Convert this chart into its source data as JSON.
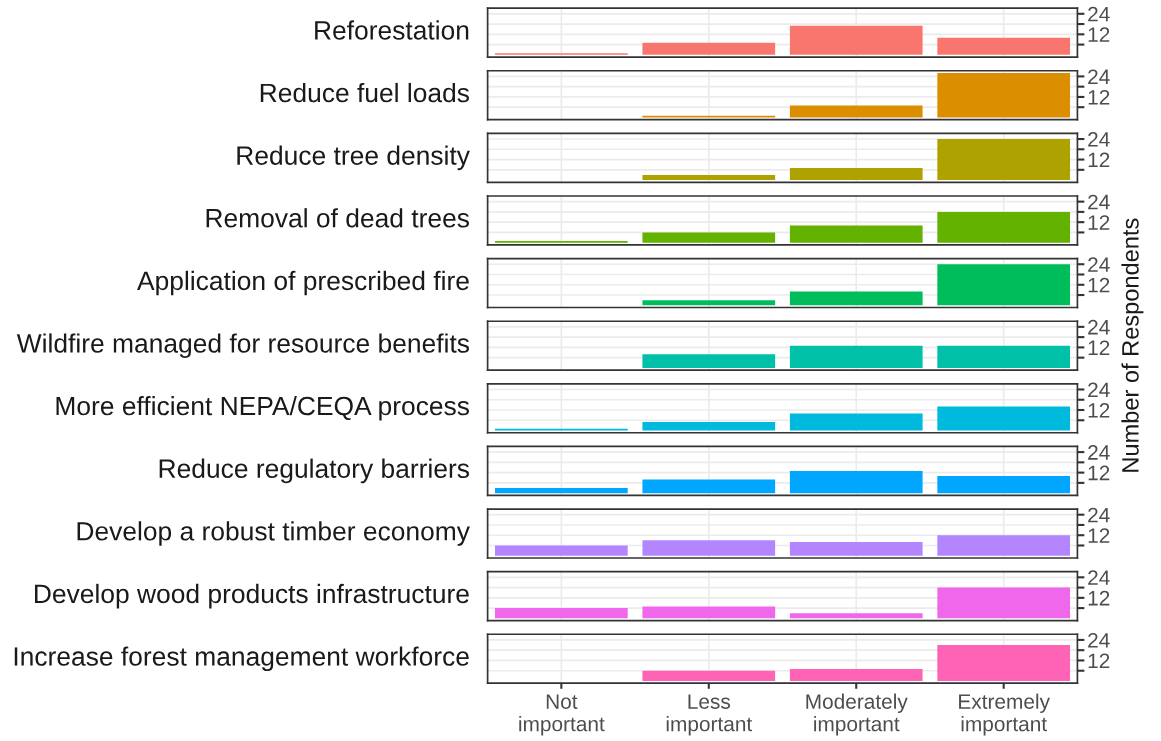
{
  "chart_data": [
    {
      "type": "bar",
      "title": "Reforestation",
      "categories": [
        null,
        null,
        null,
        null
      ],
      "values": [
        1,
        7,
        17,
        10
      ],
      "color": "#f8766d",
      "ylim": [
        -1.3,
        27.3
      ],
      "yticks": [
        12,
        24
      ],
      "grid": true,
      "tick_labels": "y"
    },
    {
      "type": "bar",
      "title": "Reduce fuel loads",
      "categories": [
        null,
        null,
        null,
        null
      ],
      "values": [
        0,
        1,
        7,
        26
      ],
      "color": "#db8e00",
      "ylim": [
        -1.3,
        27.3
      ],
      "yticks": [
        12,
        24
      ],
      "grid": true,
      "tick_labels": "y"
    },
    {
      "type": "bar",
      "title": "Reduce tree density",
      "categories": [
        null,
        null,
        null,
        null
      ],
      "values": [
        0,
        3,
        7,
        24
      ],
      "color": "#aea200",
      "ylim": [
        -1.3,
        27.3
      ],
      "yticks": [
        12,
        24
      ],
      "grid": true,
      "tick_labels": "y"
    },
    {
      "type": "bar",
      "title": "Removal of dead trees",
      "categories": [
        null,
        null,
        null,
        null
      ],
      "values": [
        1,
        6,
        10,
        18
      ],
      "color": "#64b200",
      "ylim": [
        -1.3,
        27.3
      ],
      "yticks": [
        12,
        24
      ],
      "grid": true,
      "tick_labels": "y"
    },
    {
      "type": "bar",
      "title": "Application of prescribed fire",
      "categories": [
        null,
        null,
        null,
        null
      ],
      "values": [
        0,
        3,
        8,
        24
      ],
      "color": "#00bd5c",
      "ylim": [
        -1.3,
        27.3
      ],
      "yticks": [
        12,
        24
      ],
      "grid": true,
      "tick_labels": "y"
    },
    {
      "type": "bar",
      "title": "Wildfire managed for resource benefits",
      "categories": [
        null,
        null,
        null,
        null
      ],
      "values": [
        0,
        8,
        13,
        13
      ],
      "color": "#00c1a7",
      "ylim": [
        -1.3,
        27.3
      ],
      "yticks": [
        12,
        24
      ],
      "grid": true,
      "tick_labels": "y",
      "ylabel": "Number of Respondents"
    },
    {
      "type": "bar",
      "title": "More efficient NEPA/CEQA process",
      "categories": [
        null,
        null,
        null,
        null
      ],
      "values": [
        1,
        5,
        10,
        14
      ],
      "color": "#00bade",
      "ylim": [
        -1.3,
        27.3
      ],
      "yticks": [
        12,
        24
      ],
      "grid": true,
      "tick_labels": "y"
    },
    {
      "type": "bar",
      "title": "Reduce regulatory barriers",
      "categories": [
        null,
        null,
        null,
        null
      ],
      "values": [
        3,
        8,
        13,
        10
      ],
      "color": "#00a6ff",
      "ylim": [
        -1.3,
        27.3
      ],
      "yticks": [
        12,
        24
      ],
      "grid": true,
      "tick_labels": "y"
    },
    {
      "type": "bar",
      "title": "Develop a robust timber economy",
      "categories": [
        null,
        null,
        null,
        null
      ],
      "values": [
        6,
        9,
        8,
        12
      ],
      "color": "#b385ff",
      "ylim": [
        -1.3,
        27.3
      ],
      "yticks": [
        12,
        24
      ],
      "grid": true,
      "tick_labels": "y"
    },
    {
      "type": "bar",
      "title": "Develop wood products infrastructure",
      "categories": [
        null,
        null,
        null,
        null
      ],
      "values": [
        6,
        7,
        3,
        18
      ],
      "color": "#ef67eb",
      "ylim": [
        -1.3,
        27.3
      ],
      "yticks": [
        12,
        24
      ],
      "grid": true,
      "tick_labels": "y"
    },
    {
      "type": "bar",
      "title": "Increase forest management workforce",
      "categories": [
        "Not\nimportant",
        "Less\nimportant",
        "Moderately\nimportant",
        "Extremely\nimportant"
      ],
      "values": [
        0,
        6,
        7,
        21
      ],
      "color": "#ff63b6",
      "ylim": [
        -1.3,
        27.3
      ],
      "yticks": [
        12,
        24
      ],
      "grid": true
    }
  ]
}
